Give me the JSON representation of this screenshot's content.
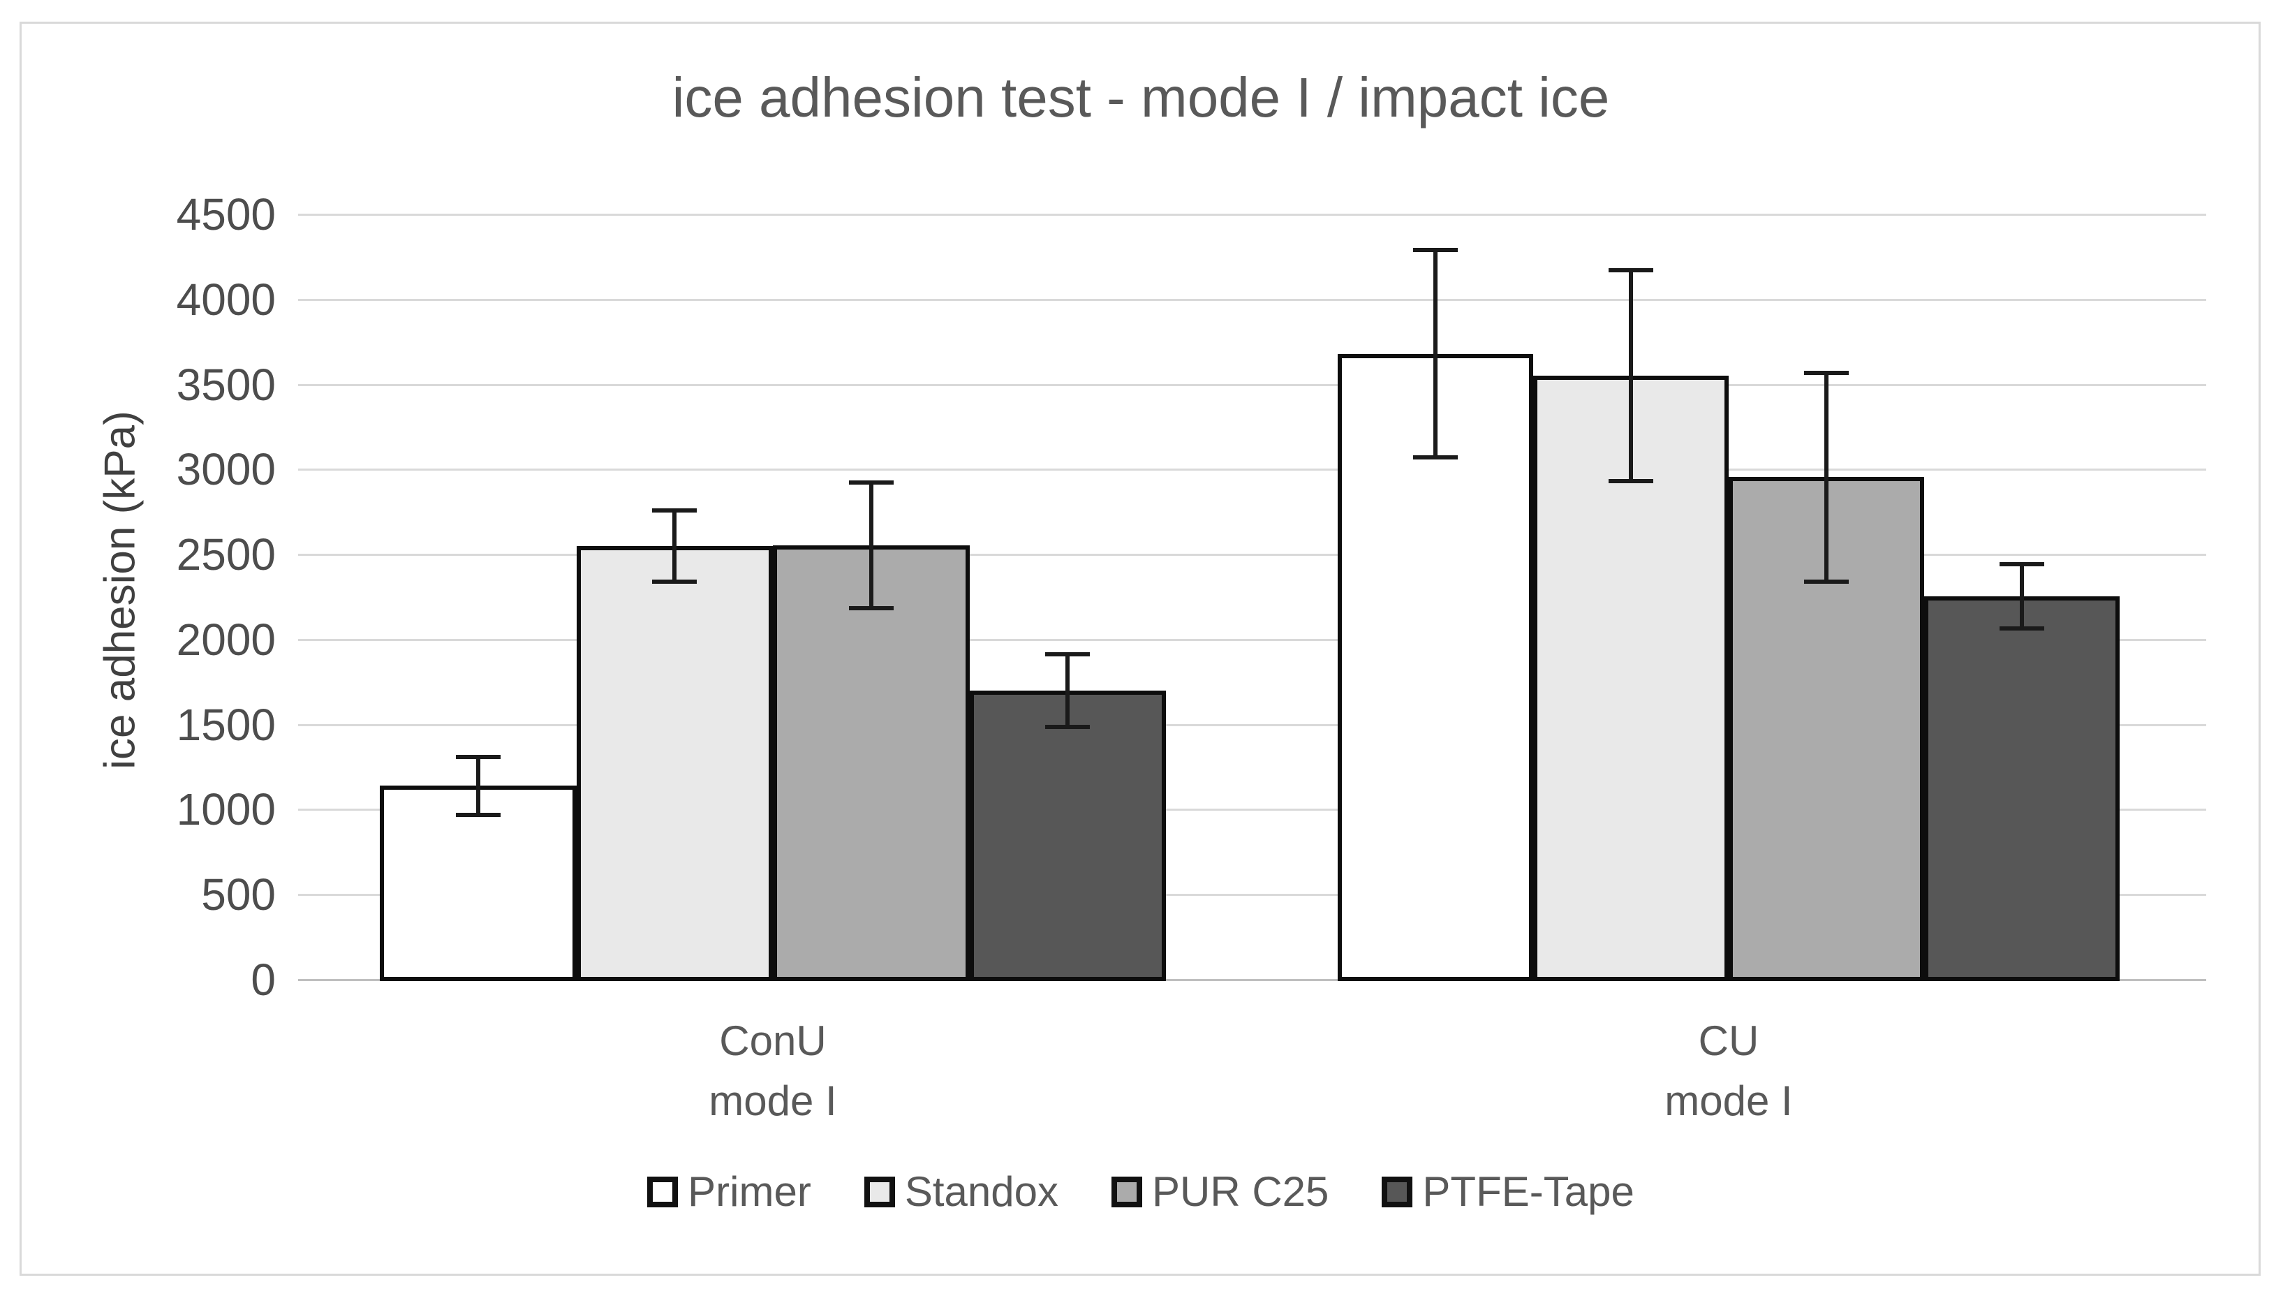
{
  "chart_data": {
    "type": "bar",
    "title": "ice adhesion test - mode I / impact ice",
    "xlabel": "",
    "ylabel": "ice adhesion (kPa)",
    "ylim": [
      0,
      4500
    ],
    "ytick_step": 500,
    "yticks": [
      0,
      500,
      1000,
      1500,
      2000,
      2500,
      3000,
      3500,
      4000,
      4500
    ],
    "grid": true,
    "legend_position": "bottom",
    "categories": [
      [
        "ConU",
        "mode I"
      ],
      [
        "CU",
        "mode I"
      ]
    ],
    "series": [
      {
        "name": "Primer",
        "color": "#ffffff",
        "values": [
          1140,
          3680
        ],
        "errors": [
          170,
          610
        ]
      },
      {
        "name": "Standox",
        "color": "#e9e9e9",
        "values": [
          2550,
          3550
        ],
        "errors": [
          210,
          620
        ]
      },
      {
        "name": "PUR C25",
        "color": "#ababab",
        "values": [
          2555,
          2955
        ],
        "errors": [
          370,
          615
        ]
      },
      {
        "name": "PTFE-Tape",
        "color": "#575757",
        "values": [
          1700,
          2255
        ],
        "errors": [
          215,
          190
        ]
      }
    ],
    "colors": {
      "gridline": "#d9d9d9",
      "axis_line": "#bfbfbf",
      "bar_border": "#0d0d0d",
      "error_bar": "#1a1a1a",
      "title_text": "#595959",
      "tick_text": "#4d4d4d",
      "label_text": "#595959"
    }
  }
}
